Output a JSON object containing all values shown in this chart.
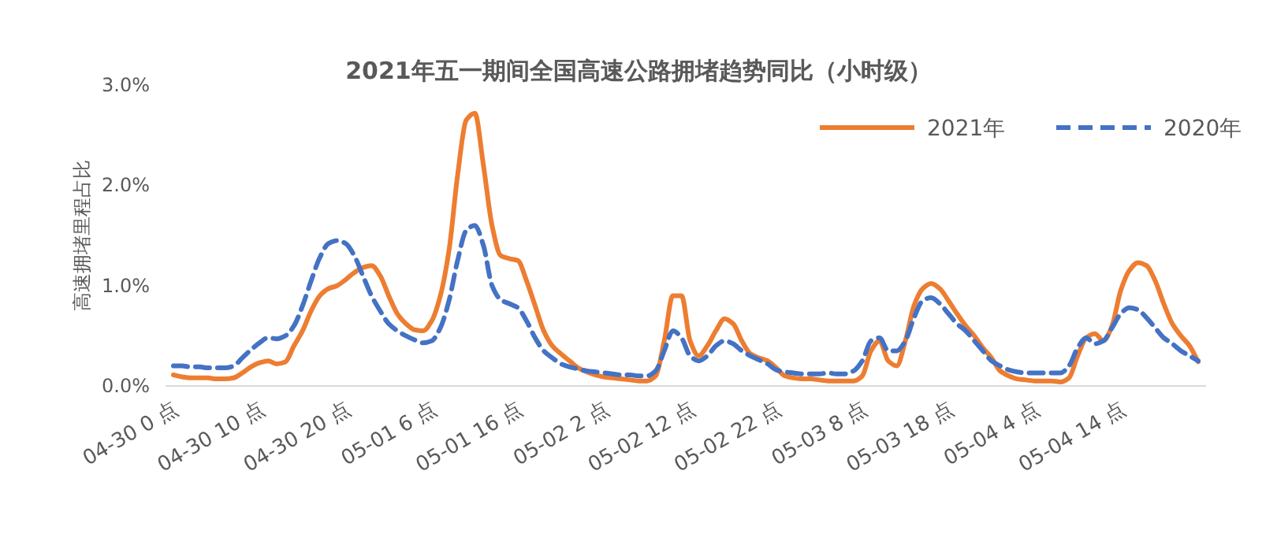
{
  "chart_data": {
    "type": "line",
    "title": "2021年五一期间全国高速公路拥堵趋势同比（小时级）",
    "ylabel": "高速拥堵里程占比",
    "categories": [
      "04-30 0 点",
      null,
      null,
      null,
      null,
      null,
      null,
      null,
      null,
      null,
      "04-30 10 点",
      null,
      null,
      null,
      null,
      null,
      null,
      null,
      null,
      null,
      "04-30 20 点",
      null,
      null,
      null,
      null,
      null,
      null,
      null,
      null,
      null,
      "05-01 6 点",
      null,
      null,
      null,
      null,
      null,
      null,
      null,
      null,
      null,
      "05-01 16 点",
      null,
      null,
      null,
      null,
      null,
      null,
      null,
      null,
      null,
      "05-02 2 点",
      null,
      null,
      null,
      null,
      null,
      null,
      null,
      null,
      null,
      "05-02 12 点",
      null,
      null,
      null,
      null,
      null,
      null,
      null,
      null,
      null,
      "05-02 22 点",
      null,
      null,
      null,
      null,
      null,
      null,
      null,
      null,
      null,
      "05-03 8 点",
      null,
      null,
      null,
      null,
      null,
      null,
      null,
      null,
      null,
      "05-03 18 点",
      null,
      null,
      null,
      null,
      null,
      null,
      null,
      null,
      null,
      "05-04 4 点",
      null,
      null,
      null,
      null,
      null,
      null,
      null,
      null,
      null,
      "05-04 14 点",
      null,
      null,
      null,
      null,
      null,
      null,
      null,
      null,
      null
    ],
    "series": [
      {
        "name": "2021年",
        "color": "#ed7d31",
        "line_style": "solid",
        "values": [
          0.11,
          0.09,
          0.08,
          0.08,
          0.08,
          0.07,
          0.07,
          0.08,
          0.13,
          0.19,
          0.23,
          0.25,
          0.22,
          0.24,
          0.4,
          0.55,
          0.75,
          0.9,
          0.97,
          1.0,
          1.06,
          1.13,
          1.18,
          1.2,
          1.1,
          0.9,
          0.72,
          0.62,
          0.56,
          0.55,
          0.65,
          0.9,
          1.35,
          2.1,
          2.65,
          2.72,
          2.2,
          1.6,
          1.3,
          1.27,
          1.25,
          1.05,
          0.8,
          0.55,
          0.4,
          0.32,
          0.25,
          0.18,
          0.14,
          0.11,
          0.09,
          0.08,
          0.07,
          0.06,
          0.05,
          0.05,
          0.1,
          0.45,
          0.9,
          0.9,
          0.45,
          0.3,
          0.4,
          0.55,
          0.67,
          0.62,
          0.45,
          0.32,
          0.28,
          0.25,
          0.18,
          0.1,
          0.08,
          0.07,
          0.07,
          0.06,
          0.05,
          0.05,
          0.05,
          0.05,
          0.1,
          0.35,
          0.45,
          0.25,
          0.2,
          0.45,
          0.8,
          0.97,
          1.02,
          0.97,
          0.85,
          0.72,
          0.6,
          0.5,
          0.38,
          0.28,
          0.15,
          0.1,
          0.07,
          0.06,
          0.05,
          0.05,
          0.05,
          0.04,
          0.08,
          0.3,
          0.48,
          0.52,
          0.45,
          0.6,
          0.95,
          1.15,
          1.23,
          1.2,
          1.05,
          0.82,
          0.62,
          0.5,
          0.4,
          0.24
        ]
      },
      {
        "name": "2020年",
        "color": "#4472c4",
        "line_style": "dashed",
        "values": [
          0.2,
          0.2,
          0.19,
          0.19,
          0.18,
          0.18,
          0.18,
          0.2,
          0.28,
          0.36,
          0.43,
          0.48,
          0.47,
          0.5,
          0.6,
          0.8,
          1.05,
          1.28,
          1.42,
          1.45,
          1.42,
          1.3,
          1.1,
          0.9,
          0.75,
          0.62,
          0.55,
          0.5,
          0.46,
          0.43,
          0.45,
          0.58,
          0.85,
          1.25,
          1.55,
          1.6,
          1.4,
          1.0,
          0.86,
          0.82,
          0.78,
          0.65,
          0.48,
          0.35,
          0.28,
          0.22,
          0.19,
          0.17,
          0.15,
          0.14,
          0.13,
          0.12,
          0.11,
          0.11,
          0.1,
          0.1,
          0.15,
          0.35,
          0.55,
          0.48,
          0.3,
          0.25,
          0.3,
          0.4,
          0.45,
          0.42,
          0.35,
          0.3,
          0.26,
          0.22,
          0.16,
          0.14,
          0.13,
          0.12,
          0.12,
          0.12,
          0.13,
          0.12,
          0.12,
          0.15,
          0.25,
          0.45,
          0.48,
          0.35,
          0.35,
          0.45,
          0.68,
          0.85,
          0.88,
          0.82,
          0.72,
          0.62,
          0.55,
          0.45,
          0.35,
          0.25,
          0.2,
          0.16,
          0.14,
          0.13,
          0.13,
          0.13,
          0.13,
          0.13,
          0.2,
          0.38,
          0.48,
          0.42,
          0.45,
          0.58,
          0.72,
          0.78,
          0.76,
          0.68,
          0.58,
          0.48,
          0.42,
          0.35,
          0.3,
          0.25
        ]
      }
    ],
    "ylim": [
      0,
      3
    ],
    "yticks": [
      {
        "value": 0,
        "label": "0.0%"
      },
      {
        "value": 1,
        "label": "1.0%"
      },
      {
        "value": 2,
        "label": "2.0%"
      },
      {
        "value": 3,
        "label": "3.0%"
      }
    ],
    "legend": "top right",
    "marker": "none"
  }
}
